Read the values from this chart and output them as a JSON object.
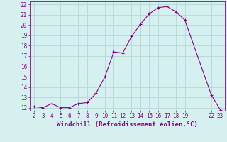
{
  "x": [
    2,
    3,
    4,
    5,
    6,
    7,
    8,
    9,
    10,
    11,
    12,
    13,
    14,
    15,
    16,
    17,
    18,
    19,
    22,
    23
  ],
  "y": [
    12.1,
    12.0,
    12.4,
    12.0,
    12.0,
    12.4,
    12.5,
    13.4,
    15.0,
    17.4,
    17.3,
    18.9,
    20.1,
    21.1,
    21.7,
    21.8,
    21.3,
    20.5,
    13.2,
    11.8
  ],
  "xlim": [
    2,
    23
  ],
  "ylim": [
    12,
    22
  ],
  "xticks": [
    2,
    3,
    4,
    5,
    6,
    7,
    8,
    9,
    10,
    11,
    12,
    13,
    14,
    15,
    16,
    17,
    18,
    19,
    22,
    23
  ],
  "yticks": [
    12,
    13,
    14,
    15,
    16,
    17,
    18,
    19,
    20,
    21,
    22
  ],
  "xlabel": "Windchill (Refroidissement éolien,°C)",
  "line_color": "#880088",
  "marker": "+",
  "marker_size": 3.5,
  "bg_color": "#d5f0ef",
  "grid_color": "#b0d8d8",
  "tick_fontsize": 5.5,
  "xlabel_fontsize": 6.5
}
